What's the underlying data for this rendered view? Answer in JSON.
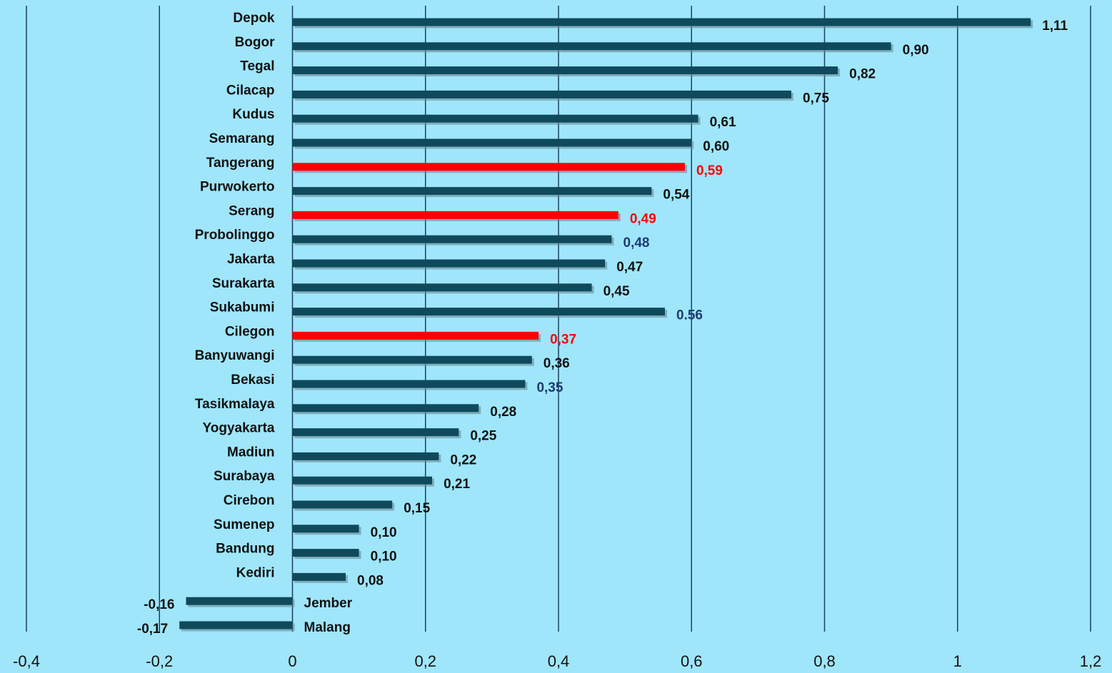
{
  "chart_data": {
    "type": "hbar",
    "categories": [
      "Depok",
      "Bogor",
      "Tegal",
      "Cilacap",
      "Kudus",
      "Semarang",
      "Tangerang",
      "Purwokerto",
      "Serang",
      "Probolinggo",
      "Jakarta",
      "Surakarta",
      "Sukabumi",
      "Cilegon",
      "Banyuwangi",
      "Bekasi",
      "Tasikmalaya",
      "Yogyakarta",
      "Madiun",
      "Surabaya",
      "Cirebon",
      "Sumenep",
      "Bandung",
      "Kediri",
      "Jember",
      "Malang"
    ],
    "values": [
      1.11,
      0.9,
      0.82,
      0.75,
      0.61,
      0.6,
      0.59,
      0.54,
      0.49,
      0.48,
      0.47,
      0.45,
      0.56,
      0.37,
      0.36,
      0.35,
      0.28,
      0.25,
      0.22,
      0.21,
      0.15,
      0.1,
      0.1,
      0.08,
      -0.16,
      -0.17
    ],
    "value_labels": [
      "1,11",
      "0,90",
      "0,82",
      "0,75",
      "0,61",
      "0,60",
      "0,59",
      "0,54",
      "0,49",
      "0,48",
      "0,47",
      "0,45",
      "0.56",
      "0,37",
      "0,36",
      "0,35",
      "0,28",
      "0,25",
      "0,22",
      "0,21",
      "0,15",
      "0,10",
      "0,10",
      "0,08",
      "-0,16",
      "-0,17"
    ],
    "colors": [
      "#0f4a5c",
      "#0f4a5c",
      "#0f4a5c",
      "#0f4a5c",
      "#0f4a5c",
      "#0f4a5c",
      "#ff0000",
      "#0f4a5c",
      "#ff0000",
      "#0f4a5c",
      "#0f4a5c",
      "#0f4a5c",
      "#0f4a5c",
      "#ff0000",
      "#0f4a5c",
      "#0f4a5c",
      "#0f4a5c",
      "#0f4a5c",
      "#0f4a5c",
      "#0f4a5c",
      "#0f4a5c",
      "#0f4a5c",
      "#0f4a5c",
      "#0f4a5c",
      "#0f4a5c",
      "#0f4a5c"
    ],
    "value_label_colors": [
      "#111111",
      "#111111",
      "#111111",
      "#111111",
      "#111111",
      "#111111",
      "#ff0000",
      "#111111",
      "#ff0000",
      "#1f3a73",
      "#111111",
      "#111111",
      "#1f3a73",
      "#ff0000",
      "#111111",
      "#1f3a73",
      "#111111",
      "#111111",
      "#111111",
      "#111111",
      "#111111",
      "#111111",
      "#111111",
      "#111111",
      "#111111",
      "#111111"
    ],
    "xlim": [
      -0.4,
      1.2
    ],
    "xticks": [
      {
        "value": -0.4,
        "label": "-0,4"
      },
      {
        "value": -0.2,
        "label": "-0,2"
      },
      0,
      {
        "value": 0.2,
        "label": "0,2"
      },
      {
        "value": 0.4,
        "label": "0,4"
      },
      {
        "value": 0.6,
        "label": "0,6"
      },
      {
        "value": 0.8,
        "label": "0,8"
      },
      1,
      {
        "value": 1.2,
        "label": "1,2"
      }
    ],
    "grid": true
  }
}
